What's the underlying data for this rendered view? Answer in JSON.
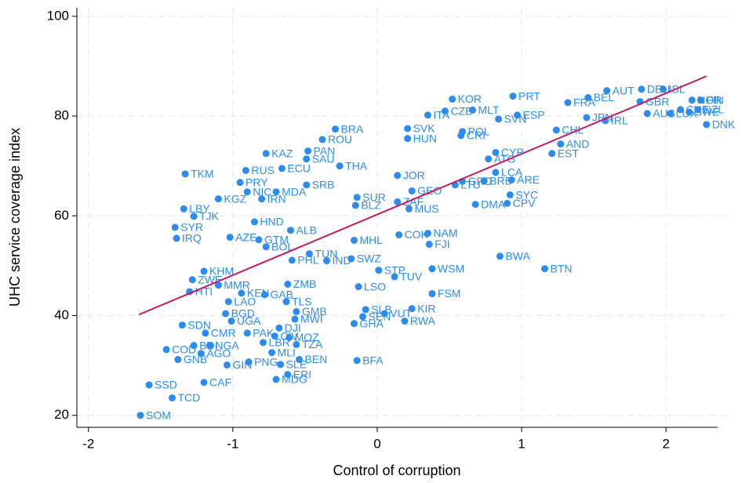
{
  "chart_data": {
    "type": "scatter",
    "xlabel": "Control of corruption",
    "ylabel": "UHC service coverage index",
    "xlim": [
      -2.08,
      2.45
    ],
    "ylim": [
      17.6,
      101.7
    ],
    "xticks": [
      -2,
      -1,
      0,
      1,
      2
    ],
    "yticks": [
      20,
      40,
      60,
      80,
      100
    ],
    "grid": true,
    "color": "#2b8cf0",
    "point_labels": [
      "SOM",
      "SSD",
      "TCD",
      "CAF",
      "MDG",
      "ERI",
      "BFA",
      "GIN",
      "PNG",
      "SLE",
      "BEN",
      "MLI",
      "GNB",
      "COD",
      "AGO",
      "NGA",
      "BDI",
      "CMR",
      "PAK",
      "LBR",
      "MOZ",
      "TZA",
      "CIV",
      "DJI",
      "SDN",
      "UGA",
      "BGD",
      "LAO",
      "MWI",
      "GMB",
      "TLS",
      "KEN",
      "GAB",
      "MMR",
      "ZWE",
      "HTI",
      "KHM",
      "ZMB",
      "LSO",
      "FSM",
      "SLB",
      "GHA",
      "SEN",
      "VUT",
      "KIR",
      "RWA",
      "STP",
      "TUV",
      "WSM",
      "BWA",
      "BTN",
      "PHL",
      "IND",
      "SWZ",
      "TUN",
      "BOL",
      "GTM",
      "AZE",
      "IRQ",
      "MHL",
      "COK",
      "NAM",
      "FJI",
      "SYR",
      "TKM",
      "LBY",
      "TJK",
      "ALB",
      "HND",
      "SUR",
      "BLZ",
      "ZAF",
      "MUS",
      "DMA",
      "CPV",
      "SYC",
      "KGZ",
      "IRN",
      "NIC",
      "MDA",
      "SRB",
      "GEO",
      "LTU",
      "GRD",
      "BRB",
      "ARE",
      "JOR",
      "KAZ",
      "PAN",
      "SAU",
      "ROU",
      "BRA",
      "CYP",
      "AND",
      "ATG",
      "EST",
      "LCA",
      "CHL",
      "POL",
      "CRI",
      "HUN",
      "SVK",
      "ITA",
      "CZE",
      "MLT",
      "KOR",
      "PRT",
      "ESP",
      "SVN",
      "FRA",
      "BEL",
      "JPN",
      "IRL",
      "AUT",
      "DEU",
      "ISL",
      "GBR",
      "AUS",
      "NOR",
      "FIN",
      "CHE",
      "SWE",
      "DNK",
      "LUX",
      "NZL",
      "RUS",
      "ECU",
      "PRY",
      "THA"
    ],
    "x": [
      -1.64,
      -1.58,
      -1.42,
      -1.2,
      -0.7,
      -0.62,
      -0.14,
      -1.04,
      -0.89,
      -0.67,
      -0.54,
      -0.73,
      -1.38,
      -1.46,
      -1.22,
      -1.16,
      -1.27,
      -1.19,
      -0.9,
      -0.79,
      -0.61,
      -0.56,
      -0.71,
      -0.68,
      -1.35,
      -1.01,
      -1.05,
      -1.03,
      -0.57,
      -0.56,
      -0.63,
      -0.94,
      -0.78,
      -1.1,
      -1.28,
      -1.3,
      -1.2,
      -0.62,
      -0.13,
      0.38,
      -0.08,
      -0.16,
      -0.1,
      0.05,
      0.24,
      0.19,
      0.01,
      0.12,
      0.38,
      0.85,
      1.16,
      -0.59,
      -0.35,
      -0.18,
      -0.47,
      -0.77,
      -0.82,
      -1.02,
      -1.39,
      -0.16,
      0.15,
      0.35,
      0.36,
      -1.4,
      -1.33,
      -1.34,
      -1.27,
      -0.6,
      -0.85,
      -0.14,
      -0.15,
      0.14,
      0.22,
      0.68,
      0.9,
      0.92,
      -1.1,
      -0.8,
      -0.9,
      -0.7,
      -0.49,
      0.24,
      0.54,
      0.59,
      0.74,
      0.93,
      0.14,
      -0.77,
      -0.48,
      -0.49,
      -0.38,
      -0.29,
      0.82,
      1.27,
      0.77,
      1.21,
      0.82,
      1.24,
      0.59,
      0.58,
      0.21,
      0.21,
      0.35,
      0.47,
      0.66,
      0.52,
      0.94,
      0.97,
      0.84,
      1.32,
      1.46,
      1.45,
      1.58,
      1.59,
      1.83,
      1.98,
      1.82,
      1.87,
      2.18,
      2.24,
      2.1,
      2.16,
      2.28,
      2.03,
      2.22,
      -0.91,
      -0.66,
      -0.95,
      -0.26
    ],
    "values": [
      20,
      26.1,
      23.5,
      26.6,
      27.2,
      28.2,
      31,
      30.1,
      30.7,
      30.2,
      31.2,
      32.6,
      31.2,
      33.2,
      32.4,
      34,
      34,
      36.5,
      36.5,
      34.6,
      35.6,
      34.2,
      35.9,
      37.5,
      38.1,
      38.9,
      40.4,
      42.8,
      39.3,
      40.8,
      42.8,
      44.5,
      44.2,
      46.1,
      47.2,
      44.8,
      48.9,
      46.3,
      45.8,
      44.4,
      41.2,
      38.4,
      39.8,
      40.4,
      41.4,
      38.9,
      49.1,
      47.8,
      49.4,
      51.9,
      49.4,
      51.1,
      51,
      51.4,
      52.4,
      53.8,
      55.2,
      55.7,
      55.5,
      55.1,
      56.2,
      56.5,
      54.3,
      57.7,
      68.4,
      61.4,
      59.9,
      57.1,
      58.8,
      63.7,
      62.1,
      62.8,
      61.4,
      62.3,
      62.5,
      64.2,
      63.4,
      63.4,
      64.8,
      64.8,
      66.2,
      65,
      66.2,
      66.9,
      67,
      67.2,
      68.1,
      72.5,
      73,
      71.4,
      75.3,
      77.4,
      72.7,
      74.4,
      71.4,
      72.5,
      68.7,
      77.2,
      76.9,
      76.1,
      75.5,
      77.5,
      80.2,
      81,
      81.2,
      83.4,
      84,
      80.2,
      79.4,
      82.7,
      83.7,
      79.7,
      79.1,
      85.1,
      85.4,
      85.4,
      82.9,
      80.5,
      83.2,
      83.2,
      81.3,
      80.8,
      78.3,
      80.5,
      81.3,
      69.1,
      69.5,
      66.7,
      70
    ],
    "fit_line": {
      "x": [
        -1.65,
        2.28
      ],
      "y": [
        40.2,
        88
      ],
      "color": "#c8195e"
    }
  }
}
